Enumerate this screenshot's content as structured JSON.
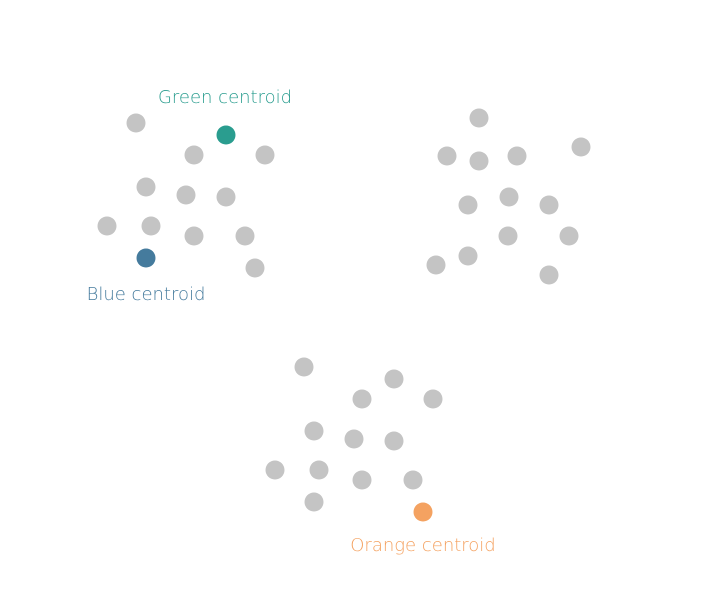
{
  "colors": {
    "point": "#c4c4c4",
    "green": "#2a9d8f",
    "blue": "#457b9d",
    "orange": "#f4a261"
  },
  "labels": {
    "green": "Green centroid",
    "blue": "Blue centroid",
    "orange": "Orange centroid"
  }
}
